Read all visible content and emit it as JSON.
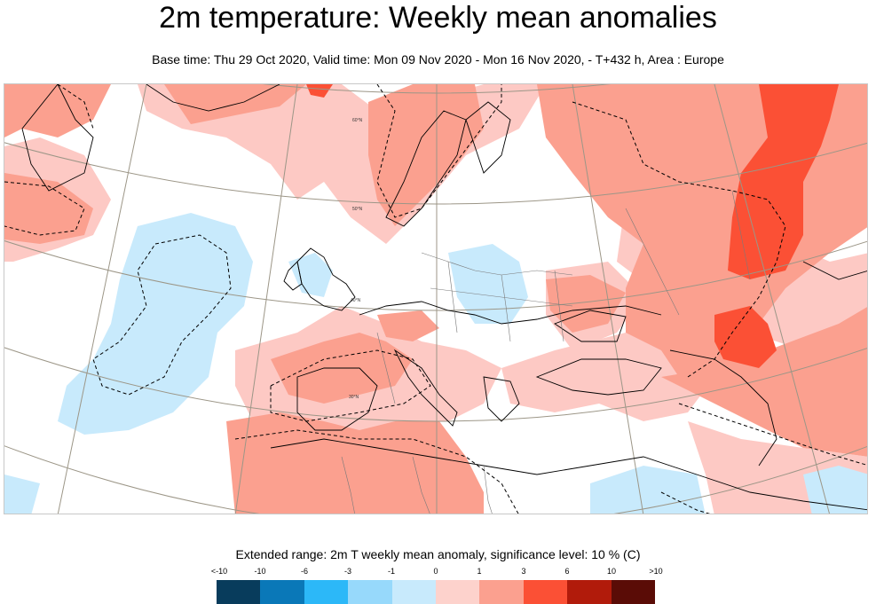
{
  "title": "2m temperature: Weekly mean anomalies",
  "subtitle": "Base time: Thu 29 Oct 2020, Valid time: Mon 09 Nov 2020 - Mon 16 Nov 2020, - T+432 h, Area : Europe",
  "map": {
    "region": "Europe",
    "latitude_labels": [
      "60°N",
      "50°N",
      "40°N",
      "30°N"
    ],
    "colors": {
      "anomaly_1_3": "#fdc9c4",
      "anomaly_3_6": "#fba08f",
      "anomaly_6_10": "#fb5035",
      "anomaly_neg1_0": "#c8eafc",
      "border": "#000000",
      "graticule": "#9c9687"
    }
  },
  "legend": {
    "title": "Extended range: 2m T weekly mean anomaly, significance level: 10 % (C)",
    "tick_labels": [
      "<-10",
      "-10",
      "-6",
      "-3",
      "-1",
      "0",
      "1",
      "3",
      "6",
      "10",
      ">10"
    ],
    "bins": [
      {
        "color": "#083c5c"
      },
      {
        "color": "#0a78b8"
      },
      {
        "color": "#2cb8f8"
      },
      {
        "color": "#97d9fb"
      },
      {
        "color": "#c8eafc"
      },
      {
        "color": "#fdd2cc"
      },
      {
        "color": "#fba08f"
      },
      {
        "color": "#fb5035"
      },
      {
        "color": "#b11b0b"
      },
      {
        "color": "#5a0c06"
      }
    ]
  }
}
